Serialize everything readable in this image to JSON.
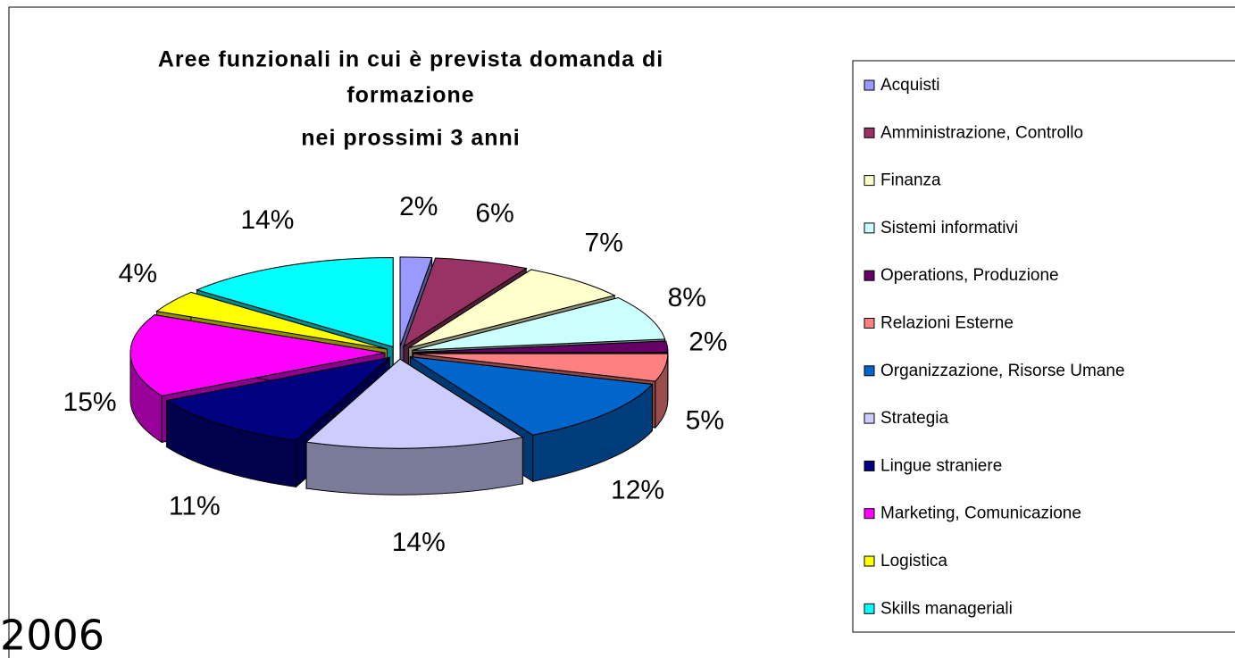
{
  "chart_data": {
    "type": "pie",
    "title": [
      "Aree funzionali in cui è prevista domanda di",
      "formazione",
      "nei prossimi 3 anni"
    ],
    "annotation": "2006",
    "categories": [
      "Acquisti",
      "Amministrazione, Controllo",
      "Finanza",
      "Sistemi informativi",
      "Operations, Produzione",
      "Relazioni Esterne",
      "Organizzazione, Risorse Umane",
      "Strategia",
      "Lingue straniere",
      "Marketing, Comunicazione",
      "Logistica",
      "Skills manageriali"
    ],
    "values": [
      2,
      6,
      7,
      8,
      2,
      5,
      12,
      14,
      11,
      15,
      4,
      14
    ],
    "value_labels": [
      "2%",
      "6%",
      "7%",
      "8%",
      "2%",
      "5%",
      "12%",
      "14%",
      "11%",
      "15%",
      "4%",
      "14%"
    ],
    "colors": [
      "#9999ff",
      "#993366",
      "#ffffcc",
      "#ccffff",
      "#660066",
      "#ff8080",
      "#0066cc",
      "#ccccff",
      "#000080",
      "#ff00ff",
      "#ffff00",
      "#00ffff"
    ],
    "legend": "right"
  }
}
